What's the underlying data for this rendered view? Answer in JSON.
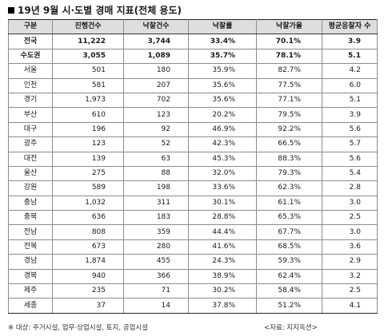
{
  "title": "19년 9월 시·도별 경매 지표(전체 용도)",
  "headers": [
    "구분",
    "진행건수",
    "낙찰건수",
    "낙찰률",
    "낙찰가율",
    "평균응찰자 수"
  ],
  "rows": [
    {
      "name": "전국",
      "bold": true,
      "v": [
        "11,222",
        "3,744",
        "33.4%",
        "70.1%",
        "3.9"
      ]
    },
    {
      "name": "수도권",
      "bold": true,
      "v": [
        "3,055",
        "1,089",
        "35.7%",
        "78.1%",
        "5.1"
      ]
    },
    {
      "name": "서울",
      "v": [
        "501",
        "180",
        "35.9%",
        "82.7%",
        "4.2"
      ]
    },
    {
      "name": "인천",
      "v": [
        "581",
        "207",
        "35.6%",
        "77.5%",
        "6.0"
      ]
    },
    {
      "name": "경기",
      "v": [
        "1,973",
        "702",
        "35.6%",
        "77.1%",
        "5.1"
      ]
    },
    {
      "name": "부산",
      "v": [
        "610",
        "123",
        "20.2%",
        "79.5%",
        "3.9"
      ]
    },
    {
      "name": "대구",
      "v": [
        "196",
        "92",
        "46.9%",
        "92.2%",
        "5.6"
      ]
    },
    {
      "name": "광주",
      "v": [
        "123",
        "52",
        "42.3%",
        "66.5%",
        "5.7"
      ]
    },
    {
      "name": "대전",
      "v": [
        "139",
        "63",
        "45.3%",
        "88.3%",
        "5.6"
      ]
    },
    {
      "name": "울산",
      "v": [
        "275",
        "88",
        "32.0%",
        "79.3%",
        "5.4"
      ]
    },
    {
      "name": "강원",
      "v": [
        "589",
        "198",
        "33.6%",
        "62.3%",
        "2.8"
      ]
    },
    {
      "name": "충남",
      "v": [
        "1,032",
        "311",
        "30.1%",
        "61.1%",
        "3.0"
      ]
    },
    {
      "name": "충북",
      "v": [
        "636",
        "183",
        "28.8%",
        "65.3%",
        "2.5"
      ]
    },
    {
      "name": "전남",
      "v": [
        "808",
        "359",
        "44.4%",
        "67.7%",
        "3.0"
      ]
    },
    {
      "name": "전북",
      "v": [
        "673",
        "280",
        "41.6%",
        "68.5%",
        "3.6"
      ]
    },
    {
      "name": "경남",
      "v": [
        "1,874",
        "455",
        "24.3%",
        "59.3%",
        "2.9"
      ]
    },
    {
      "name": "경북",
      "v": [
        "940",
        "366",
        "38.9%",
        "62.4%",
        "3.2"
      ]
    },
    {
      "name": "제주",
      "v": [
        "235",
        "71",
        "30.2%",
        "58.4%",
        "2.5"
      ]
    },
    {
      "name": "세종",
      "v": [
        "37",
        "14",
        "37.8%",
        "51.2%",
        "4.1"
      ]
    }
  ],
  "footnote": "※ 대상: 주거시설, 업무·상업시설, 토지, 공업시설",
  "source": "<자료: 지지옥션>"
}
